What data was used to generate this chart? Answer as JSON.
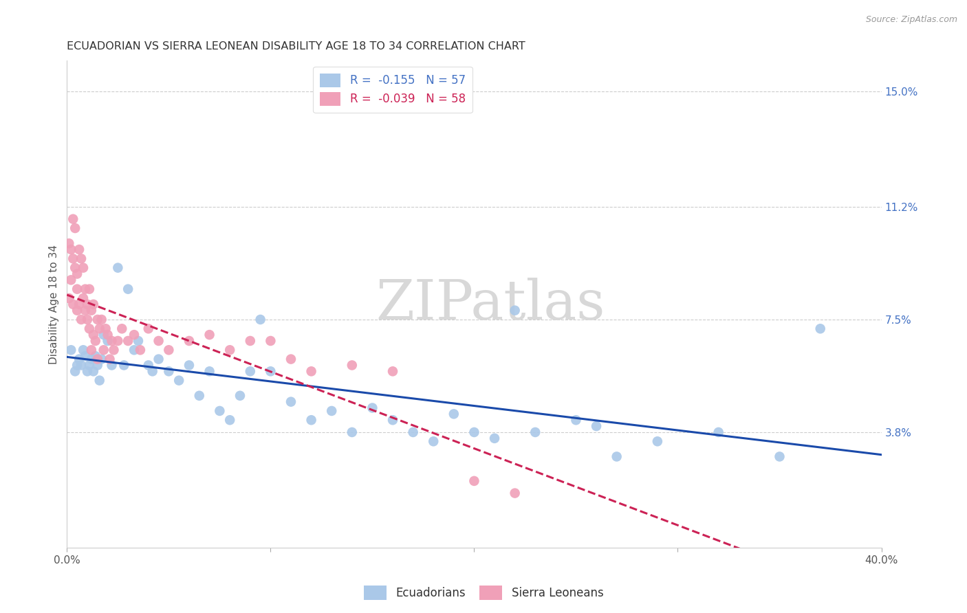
{
  "title": "ECUADORIAN VS SIERRA LEONEAN DISABILITY AGE 18 TO 34 CORRELATION CHART",
  "source": "Source: ZipAtlas.com",
  "ylabel": "Disability Age 18 to 34",
  "xlim": [
    0.0,
    0.4
  ],
  "ylim": [
    0.0,
    0.16
  ],
  "ytick_right_labels": [
    "15.0%",
    "11.2%",
    "7.5%",
    "3.8%"
  ],
  "ytick_right_vals": [
    0.15,
    0.112,
    0.075,
    0.038
  ],
  "grid_color": "#cccccc",
  "background_color": "#ffffff",
  "ecuadorians": {
    "R": -0.155,
    "N": 57,
    "color": "#aac8e8",
    "line_color": "#1a4aaa",
    "x": [
      0.002,
      0.004,
      0.005,
      0.006,
      0.007,
      0.008,
      0.009,
      0.01,
      0.011,
      0.012,
      0.013,
      0.014,
      0.015,
      0.016,
      0.017,
      0.018,
      0.02,
      0.022,
      0.025,
      0.028,
      0.03,
      0.033,
      0.035,
      0.04,
      0.042,
      0.045,
      0.05,
      0.055,
      0.06,
      0.065,
      0.07,
      0.075,
      0.08,
      0.085,
      0.09,
      0.095,
      0.1,
      0.11,
      0.12,
      0.13,
      0.14,
      0.15,
      0.16,
      0.17,
      0.18,
      0.19,
      0.2,
      0.21,
      0.22,
      0.23,
      0.25,
      0.26,
      0.27,
      0.29,
      0.32,
      0.35,
      0.37
    ],
    "y": [
      0.065,
      0.058,
      0.06,
      0.062,
      0.06,
      0.065,
      0.063,
      0.058,
      0.06,
      0.062,
      0.058,
      0.063,
      0.06,
      0.055,
      0.062,
      0.07,
      0.068,
      0.06,
      0.092,
      0.06,
      0.085,
      0.065,
      0.068,
      0.06,
      0.058,
      0.062,
      0.058,
      0.055,
      0.06,
      0.05,
      0.058,
      0.045,
      0.042,
      0.05,
      0.058,
      0.075,
      0.058,
      0.048,
      0.042,
      0.045,
      0.038,
      0.046,
      0.042,
      0.038,
      0.035,
      0.044,
      0.038,
      0.036,
      0.078,
      0.038,
      0.042,
      0.04,
      0.03,
      0.035,
      0.038,
      0.03,
      0.072
    ]
  },
  "sierra_leoneans": {
    "R": -0.039,
    "N": 58,
    "color": "#f0a0b8",
    "line_color": "#cc2255",
    "x": [
      0.001,
      0.001,
      0.002,
      0.002,
      0.003,
      0.003,
      0.003,
      0.004,
      0.004,
      0.005,
      0.005,
      0.005,
      0.006,
      0.006,
      0.007,
      0.007,
      0.008,
      0.008,
      0.009,
      0.009,
      0.01,
      0.01,
      0.011,
      0.011,
      0.012,
      0.012,
      0.013,
      0.013,
      0.014,
      0.015,
      0.015,
      0.016,
      0.017,
      0.018,
      0.019,
      0.02,
      0.021,
      0.022,
      0.023,
      0.025,
      0.027,
      0.03,
      0.033,
      0.036,
      0.04,
      0.045,
      0.05,
      0.06,
      0.07,
      0.08,
      0.09,
      0.1,
      0.11,
      0.12,
      0.14,
      0.16,
      0.2,
      0.22
    ],
    "y": [
      0.1,
      0.082,
      0.098,
      0.088,
      0.108,
      0.095,
      0.08,
      0.105,
      0.092,
      0.09,
      0.085,
      0.078,
      0.098,
      0.08,
      0.095,
      0.075,
      0.082,
      0.092,
      0.078,
      0.085,
      0.08,
      0.075,
      0.085,
      0.072,
      0.078,
      0.065,
      0.08,
      0.07,
      0.068,
      0.075,
      0.062,
      0.072,
      0.075,
      0.065,
      0.072,
      0.07,
      0.062,
      0.068,
      0.065,
      0.068,
      0.072,
      0.068,
      0.07,
      0.065,
      0.072,
      0.068,
      0.065,
      0.068,
      0.07,
      0.065,
      0.068,
      0.068,
      0.062,
      0.058,
      0.06,
      0.058,
      0.022,
      0.018
    ]
  },
  "watermark_text": "ZIPatlas",
  "watermark_color": "#d8d8d8"
}
